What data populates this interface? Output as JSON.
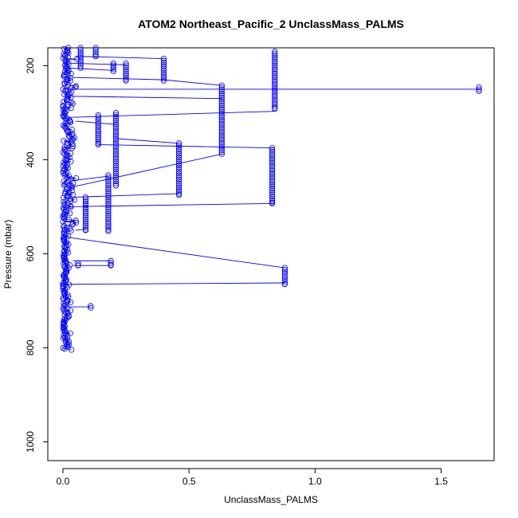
{
  "chart_data": {
    "type": "scatter",
    "title": "ATOM2 Northeast_Pacific_2 UnclassMass_PALMS",
    "xlabel": "UnclassMass_PALMS",
    "ylabel": "Pressure (mbar)",
    "xlim": [
      -0.06,
      1.71
    ],
    "ylim": [
      1040,
      162
    ],
    "y_inverted": true,
    "x_ticks": [
      0.0,
      0.5,
      1.0,
      1.5
    ],
    "x_tick_labels": [
      "0.0",
      "0.5",
      "1.0",
      "1.5"
    ],
    "y_ticks": [
      200,
      400,
      600,
      800,
      1000
    ],
    "y_tick_labels": [
      "200",
      "400",
      "600",
      "800",
      "1000"
    ],
    "series_color": "#0000ff",
    "marker": "open-circle",
    "connect_points": true,
    "columns": [
      {
        "x": 0.13,
        "p_min": 162,
        "p_max": 180
      },
      {
        "x": 0.07,
        "p_min": 162,
        "p_max": 205
      },
      {
        "x": 0.2,
        "p_min": 195,
        "p_max": 212
      },
      {
        "x": 0.25,
        "p_min": 195,
        "p_max": 232
      },
      {
        "x": 0.4,
        "p_min": 185,
        "p_max": 232
      },
      {
        "x": 0.63,
        "p_min": 242,
        "p_max": 388
      },
      {
        "x": 0.84,
        "p_min": 170,
        "p_max": 292
      },
      {
        "x": 1.65,
        "p_min": 246,
        "p_max": 254
      },
      {
        "x": 0.14,
        "p_min": 305,
        "p_max": 368
      },
      {
        "x": 0.21,
        "p_min": 300,
        "p_max": 455
      },
      {
        "x": 0.46,
        "p_min": 365,
        "p_max": 475
      },
      {
        "x": 0.83,
        "p_min": 375,
        "p_max": 493
      },
      {
        "x": 0.18,
        "p_min": 433,
        "p_max": 552
      },
      {
        "x": 0.09,
        "p_min": 480,
        "p_max": 550
      },
      {
        "x": 0.88,
        "p_min": 630,
        "p_max": 665
      },
      {
        "x": 0.19,
        "p_min": 615,
        "p_max": 625
      },
      {
        "x": 0.11,
        "p_min": 711,
        "p_max": 715
      },
      {
        "x": 0.06,
        "p_min": 620,
        "p_max": 625
      }
    ],
    "connectors": [
      [
        0.05,
        180,
        0.4,
        185
      ],
      [
        0.03,
        195,
        0.25,
        198
      ],
      [
        0.02,
        205,
        0.2,
        210
      ],
      [
        0.04,
        225,
        0.4,
        230
      ],
      [
        0.4,
        230,
        0.63,
        242
      ],
      [
        0.02,
        250,
        1.65,
        250
      ],
      [
        0.03,
        265,
        0.63,
        270
      ],
      [
        0.02,
        310,
        0.84,
        297
      ],
      [
        0.05,
        318,
        0.21,
        325
      ],
      [
        0.14,
        368,
        0.84,
        375
      ],
      [
        0.21,
        355,
        0.46,
        365
      ],
      [
        0.02,
        460,
        0.63,
        388
      ],
      [
        0.03,
        480,
        0.46,
        472
      ],
      [
        0.02,
        500,
        0.84,
        493
      ],
      [
        0.03,
        445,
        0.18,
        435
      ],
      [
        0.02,
        565,
        0.88,
        630
      ],
      [
        0.02,
        665,
        0.88,
        662
      ],
      [
        0.04,
        615,
        0.19,
        615
      ],
      [
        0.04,
        625,
        0.19,
        625
      ],
      [
        0.02,
        713,
        0.11,
        713
      ],
      [
        0.05,
        550,
        0.09,
        548
      ]
    ],
    "dense_column": {
      "x_min": 0.0,
      "x_max": 0.06,
      "p_min": 162,
      "p_max": 805
    }
  }
}
